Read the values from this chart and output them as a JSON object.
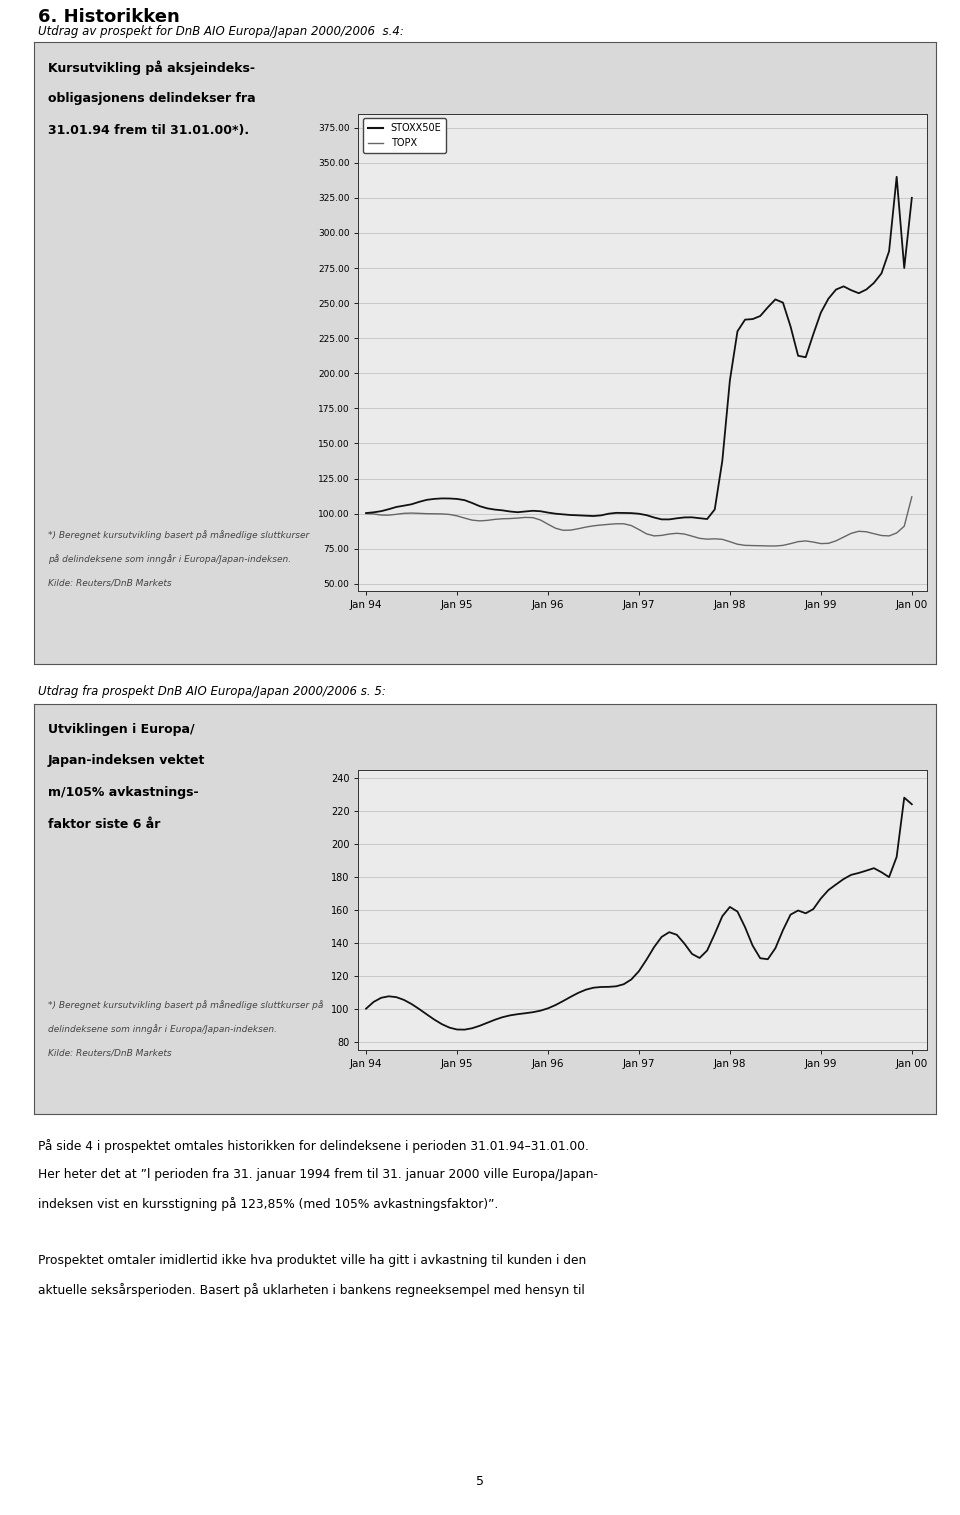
{
  "title_main": "6. Historikken",
  "subtitle1": "Utdrag av prospekt for DnB AIO Europa/Japan 2000/2006  s.4:",
  "subtitle2": "Utdrag fra prospekt DnB AIO Europa/Japan 2000/2006 s. 5:",
  "chart1": {
    "title_left_line1": "Kursutvikling på aksjeindeks-",
    "title_left_line2": "obligasjonens delindekser fra",
    "title_left_line3": "31.01.94 frem til 31.01.00*).",
    "footnote_line1": "*) Beregnet kursutvikling basert på månedlige sluttkurser",
    "footnote_line2": "på delindeksene som inngår i Europa/Japan-indeksen.",
    "footnote_line3": "Kilde: Reuters/DnB Markets",
    "legend_stoxx": "STOXX50E",
    "legend_topx": "TOPX",
    "ytick_labels": [
      "50.00",
      "75.00",
      "100.00",
      "125.00",
      "150.00",
      "175.00",
      "200.00",
      "225.00",
      "250.00",
      "275.00",
      "300.00",
      "325.00",
      "350.00",
      "375.00"
    ],
    "ytick_vals": [
      50.0,
      75.0,
      100.0,
      125.0,
      150.0,
      175.0,
      200.0,
      225.0,
      250.0,
      275.0,
      300.0,
      325.0,
      350.0,
      375.0
    ],
    "xtick_labels": [
      "Jan 94",
      "Jan 95",
      "Jan 96",
      "Jan 97",
      "Jan 98",
      "Jan 99",
      "Jan 00"
    ],
    "ylim": [
      45,
      385
    ],
    "xlim": [
      -1,
      74
    ]
  },
  "chart2": {
    "title_left_line1": "Utviklingen i Europa/",
    "title_left_line2": "Japan-indeksen vektet",
    "title_left_line3": "m/105% avkastnings-",
    "title_left_line4": "faktor siste 6 år",
    "footnote_line1": "*) Beregnet kursutvikling basert på månedlige sluttkurser på",
    "footnote_line2": "delindeksene som inngår i Europa/Japan-indeksen.",
    "footnote_line3": "Kilde: Reuters/DnB Markets",
    "ytick_labels": [
      "80",
      "100",
      "120",
      "140",
      "160",
      "180",
      "200",
      "220",
      "240"
    ],
    "ytick_vals": [
      80,
      100,
      120,
      140,
      160,
      180,
      200,
      220,
      240
    ],
    "xtick_labels": [
      "Jan 94",
      "Jan 95",
      "Jan 96",
      "Jan 97",
      "Jan 98",
      "Jan 99",
      "Jan 00"
    ],
    "ylim": [
      75,
      245
    ],
    "xlim": [
      -1,
      74
    ]
  },
  "text_block_lines": [
    "På side 4 i prospektet omtales historikken for delindeksene i perioden 31.01.94–31.01.00.",
    "Her heter det at ”l perioden fra 31. januar 1994 frem til 31. januar 2000 ville Europa/Japan-",
    "indeksen vist en kursstigning på 123,85% (med 105% avkastningsfaktor)”.",
    "",
    "Prospektet omtaler imidlertid ikke hva produktet ville ha gitt i avkastning til kunden i den",
    "aktuelle seksårsperioden. Basert på uklarheten i bankens regneeksempel med hensyn til"
  ],
  "page_number": "5",
  "page_bg": "#ffffff",
  "box_bg": "#d9d9d9",
  "plot_bg": "#e8e8e8",
  "line_stoxx": "#111111",
  "line_topx": "#666666",
  "line_ej": "#111111",
  "grid_color": "#aaaaaa",
  "text_color": "#000000",
  "footnote_color": "#333333"
}
